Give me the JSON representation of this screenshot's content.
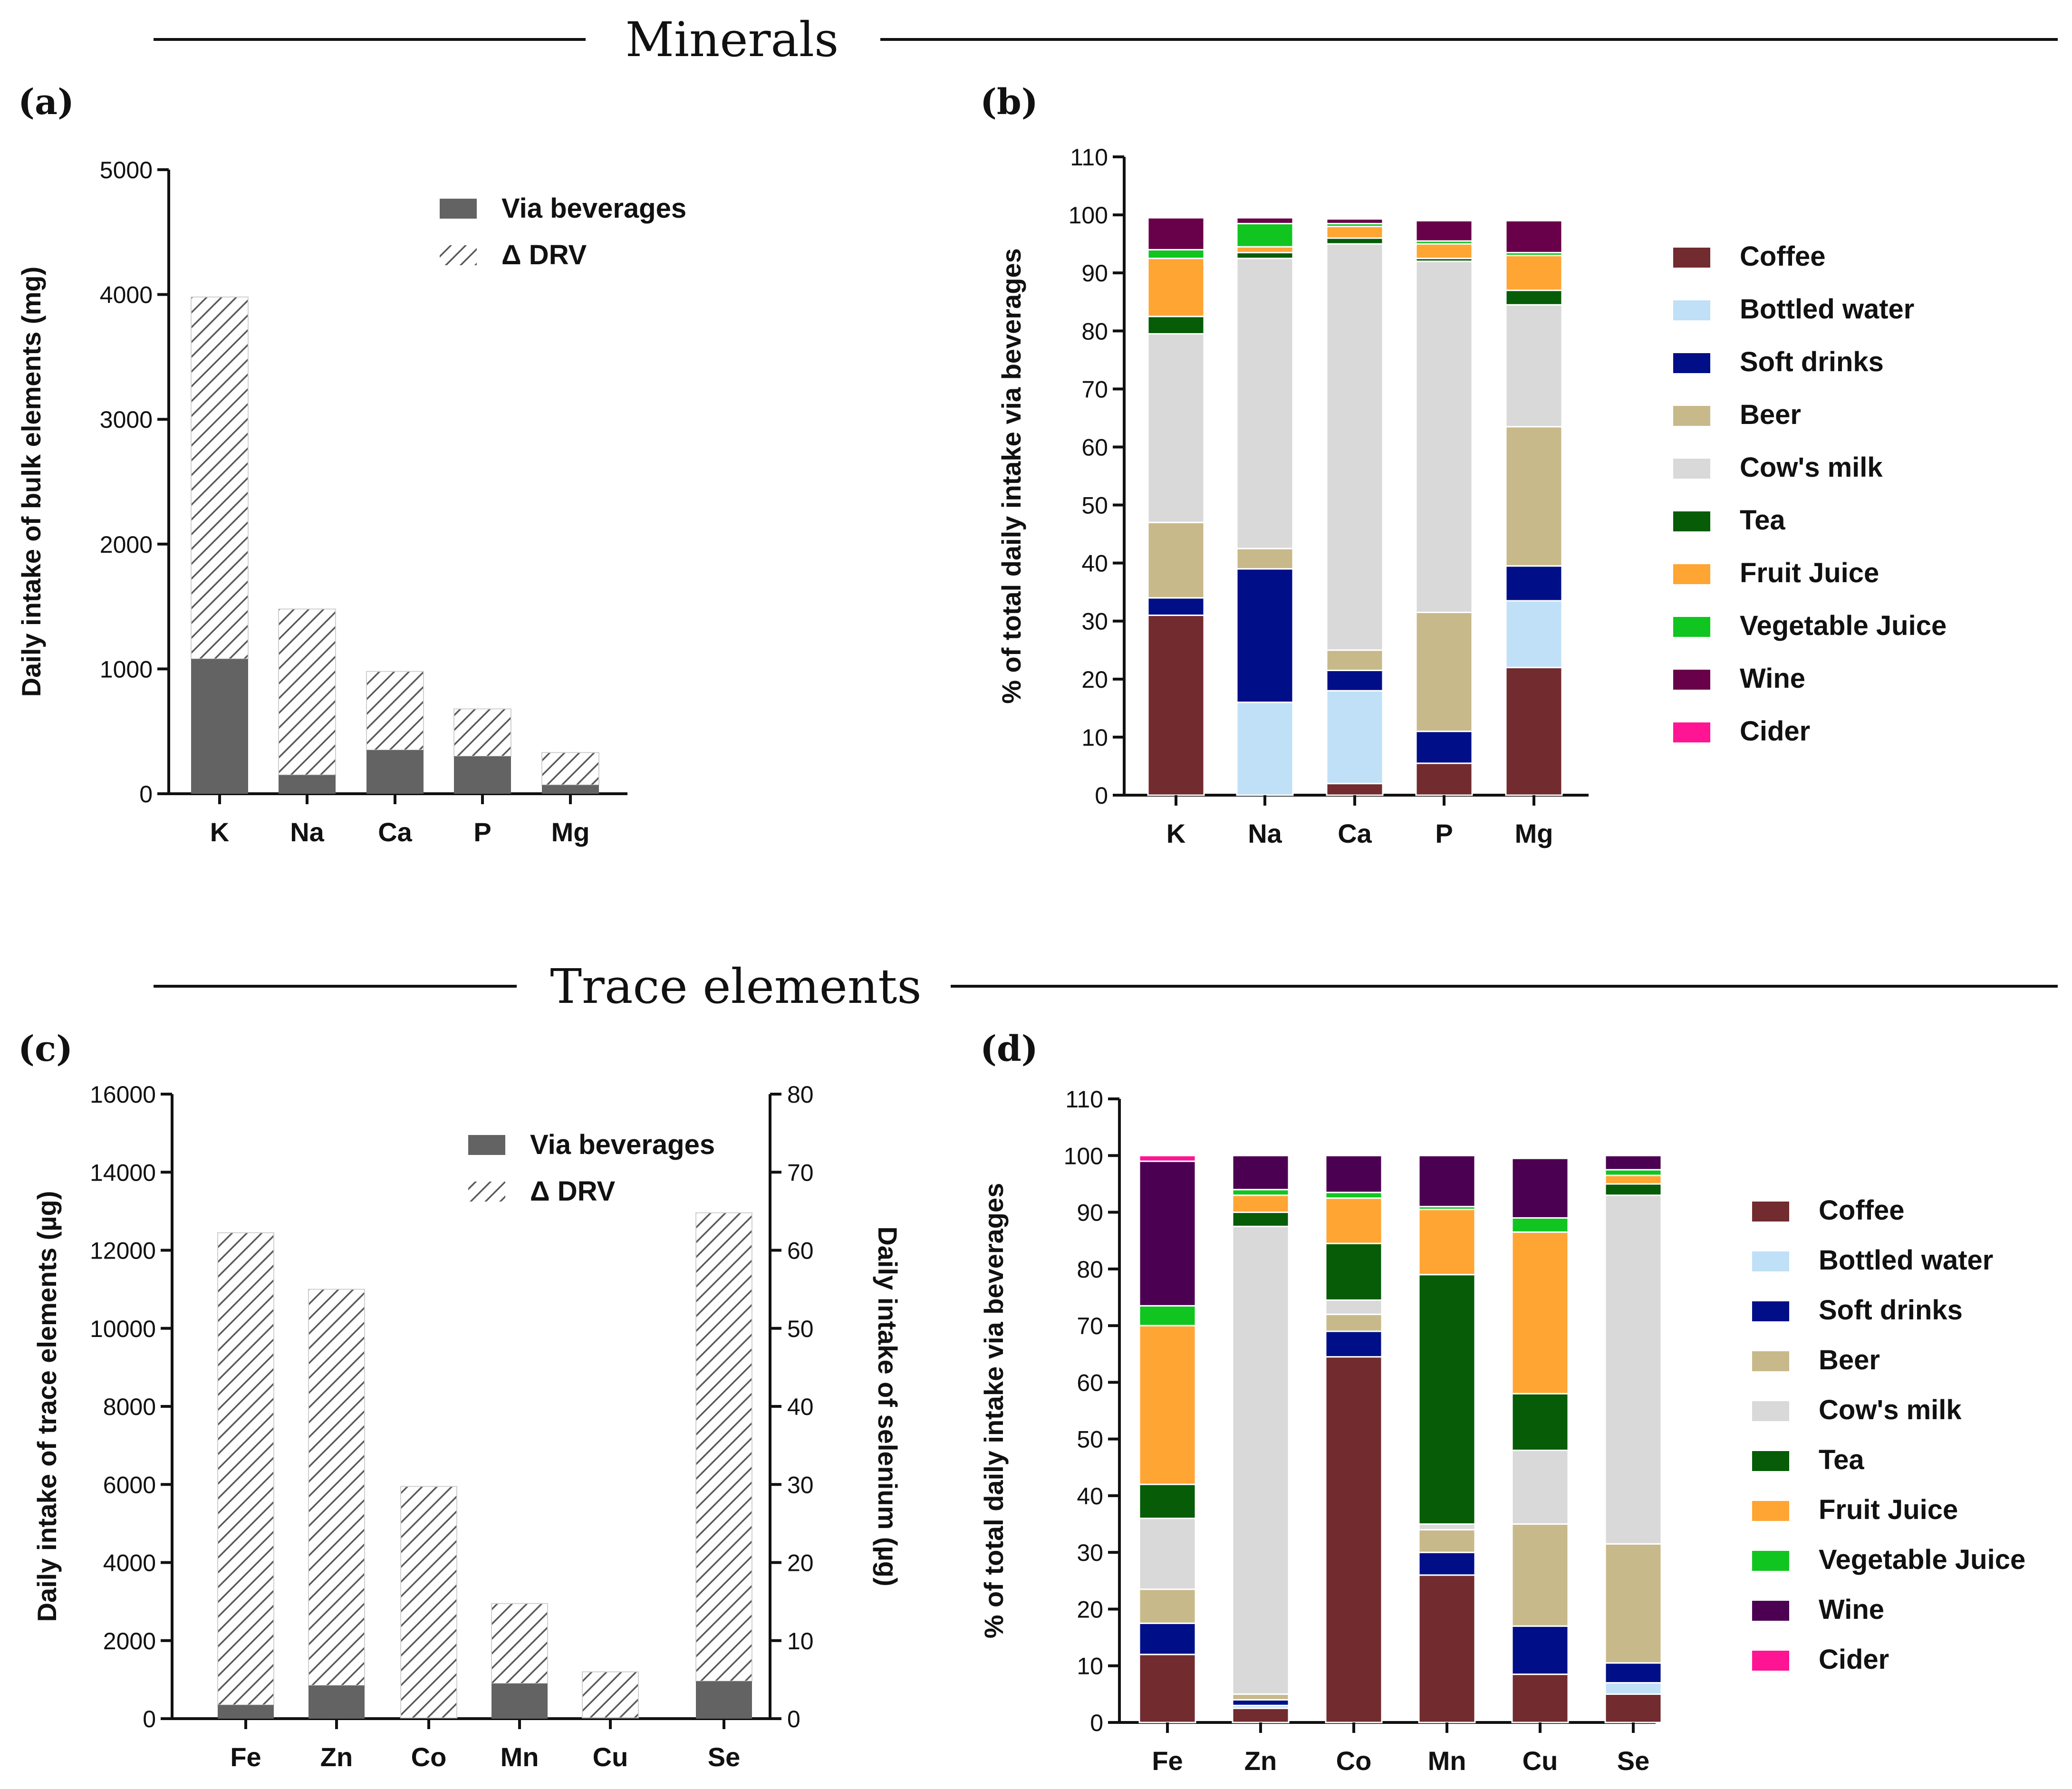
{
  "sections": {
    "minerals": "Minerals",
    "trace": "Trace elements"
  },
  "colors": {
    "Coffee": "#722b2e",
    "Bottled water": "#bfe0f7",
    "Soft drinks": "#000f87",
    "Beer": "#c8b98a",
    "Cow's milk": "#d9d9d9",
    "Tea": "#065c07",
    "Fruit Juice": "#ffa534",
    "Vegetable Juice": "#10c520",
    "Wine": "#68004a",
    "Wine (d)": "#4c0052",
    "Cider": "#ff1493",
    "Via beverages": "#636363"
  },
  "chart_data": [
    {
      "id": "a",
      "panel_label": "(a)",
      "type": "bar",
      "categories": [
        "K",
        "Na",
        "Ca",
        "P",
        "Mg"
      ],
      "series": [
        {
          "name": "Via beverages",
          "values": [
            1080,
            150,
            350,
            300,
            70
          ]
        },
        {
          "name": "Δ DRV",
          "values": [
            2900,
            1330,
            630,
            380,
            260
          ]
        }
      ],
      "stacked": true,
      "ylabel": "Daily intake of bulk elements (mg)",
      "ylim": [
        0,
        5000
      ],
      "yticks": [
        0,
        1000,
        2000,
        3000,
        4000,
        5000
      ],
      "legend": [
        "Via beverages",
        "Δ DRV"
      ]
    },
    {
      "id": "b",
      "panel_label": "(b)",
      "type": "bar",
      "categories": [
        "K",
        "Na",
        "Ca",
        "P",
        "Mg"
      ],
      "series_order": [
        "Coffee",
        "Bottled water",
        "Soft drinks",
        "Beer",
        "Cow's milk",
        "Tea",
        "Fruit Juice",
        "Vegetable Juice",
        "Wine",
        "Cider"
      ],
      "series": [
        {
          "name": "Coffee",
          "values": [
            31,
            0,
            2,
            5.5,
            22
          ]
        },
        {
          "name": "Bottled water",
          "values": [
            0,
            16,
            16,
            0,
            11.5
          ]
        },
        {
          "name": "Soft drinks",
          "values": [
            3,
            23,
            3.5,
            5.5,
            6
          ]
        },
        {
          "name": "Beer",
          "values": [
            13,
            3.5,
            3.5,
            20.5,
            24
          ]
        },
        {
          "name": "Cow's milk",
          "values": [
            32.5,
            50,
            70,
            60.5,
            21
          ]
        },
        {
          "name": "Tea",
          "values": [
            3,
            1,
            1,
            0.5,
            2.5
          ]
        },
        {
          "name": "Fruit Juice",
          "values": [
            10,
            1,
            2,
            2.5,
            6
          ]
        },
        {
          "name": "Vegetable Juice",
          "values": [
            1.5,
            4,
            0.5,
            0.5,
            0.5
          ]
        },
        {
          "name": "Wine",
          "values": [
            5.5,
            1,
            0.8,
            3.5,
            5.5
          ]
        },
        {
          "name": "Cider",
          "values": [
            0,
            0,
            0,
            0,
            0
          ]
        }
      ],
      "stacked": true,
      "ylabel": "% of total daily intake via beverages",
      "ylim": [
        0,
        110
      ],
      "yticks": [
        0,
        10,
        20,
        30,
        40,
        50,
        60,
        70,
        80,
        90,
        100,
        110
      ]
    },
    {
      "id": "c",
      "panel_label": "(c)",
      "type": "bar",
      "categories": [
        "Fe",
        "Zn",
        "Co",
        "Mn",
        "Cu",
        "Se"
      ],
      "series": [
        {
          "name": "Via beverages",
          "values": [
            350,
            850,
            15,
            900,
            20,
            4.8
          ]
        },
        {
          "name": "Δ DRV",
          "values": [
            12100,
            10150,
            5935,
            2050,
            1180,
            60
          ]
        }
      ],
      "stacked": true,
      "secondary_axis_categories": [
        "Se"
      ],
      "ylabel": "Daily intake of trace elements (µg)",
      "ylabel_right": "Daily intake of selenium (µg)",
      "ylim": [
        0,
        16000
      ],
      "yticks": [
        0,
        2000,
        4000,
        6000,
        8000,
        10000,
        12000,
        14000,
        16000
      ],
      "ylim_right": [
        0,
        80
      ],
      "yticks_right": [
        0,
        10,
        20,
        30,
        40,
        50,
        60,
        70,
        80
      ],
      "legend": [
        "Via beverages",
        "Δ DRV"
      ]
    },
    {
      "id": "d",
      "panel_label": "(d)",
      "type": "bar",
      "categories": [
        "Fe",
        "Zn",
        "Co",
        "Mn",
        "Cu",
        "Se"
      ],
      "series_order": [
        "Coffee",
        "Bottled water",
        "Soft drinks",
        "Beer",
        "Cow's milk",
        "Tea",
        "Fruit Juice",
        "Vegetable Juice",
        "Wine",
        "Cider"
      ],
      "series": [
        {
          "name": "Coffee",
          "values": [
            12,
            2.5,
            64.5,
            26,
            8.5,
            5
          ]
        },
        {
          "name": "Bottled water",
          "values": [
            0,
            0.5,
            0,
            0,
            0,
            2
          ]
        },
        {
          "name": "Soft drinks",
          "values": [
            5.5,
            1,
            4.5,
            4,
            8.5,
            3.5
          ]
        },
        {
          "name": "Beer",
          "values": [
            6,
            1,
            3,
            4,
            18,
            21
          ]
        },
        {
          "name": "Cow's milk",
          "values": [
            12.5,
            82.5,
            2.5,
            1,
            13,
            61.5
          ]
        },
        {
          "name": "Tea",
          "values": [
            6,
            2.5,
            10,
            44,
            10,
            2
          ]
        },
        {
          "name": "Fruit Juice",
          "values": [
            28,
            3,
            8,
            11.5,
            28.5,
            1.5
          ]
        },
        {
          "name": "Vegetable Juice",
          "values": [
            3.5,
            1,
            1,
            0.5,
            2.5,
            1
          ]
        },
        {
          "name": "Wine",
          "values": [
            25.5,
            6,
            6.5,
            9,
            10.5,
            2.5
          ]
        },
        {
          "name": "Cider",
          "values": [
            1,
            0,
            0,
            0,
            0,
            0
          ]
        }
      ],
      "stacked": true,
      "ylabel": "% of total daily intake via beverages",
      "ylim": [
        0,
        110
      ],
      "yticks": [
        0,
        10,
        20,
        30,
        40,
        50,
        60,
        70,
        80,
        90,
        100,
        110
      ]
    }
  ]
}
